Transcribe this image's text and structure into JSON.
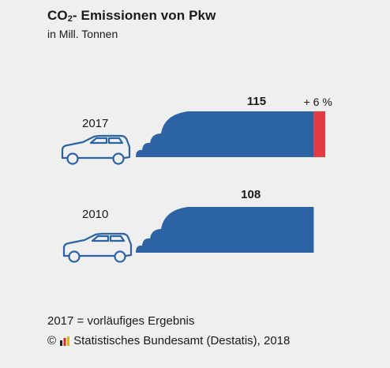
{
  "title_main": "CO",
  "title_sub": "2",
  "title_rest": "- Emissionen von Pkw",
  "subtitle": "in Mill. Tonnen",
  "footnote": "2017 = vorläufiges Ergebnis",
  "source_copyright": "©",
  "source_text": "Statistisches Bundesamt (Destatis), 2018",
  "colors": {
    "bar": "#2c63a4",
    "increase": "#e53a44",
    "car_outline": "#2c63a4",
    "background": "#efefef"
  },
  "chart_data": {
    "type": "bar",
    "orientation": "horizontal",
    "categories": [
      "2017",
      "2010"
    ],
    "values": [
      115,
      108
    ],
    "value_labels": [
      "115",
      "108"
    ],
    "increase_label": "+ 6 %",
    "increase_category": "2017",
    "increase_from": 108,
    "increase_to": 115,
    "title": "CO2- Emissionen von Pkw",
    "unit": "in Mill. Tonnen",
    "xlim": [
      0,
      115
    ]
  }
}
